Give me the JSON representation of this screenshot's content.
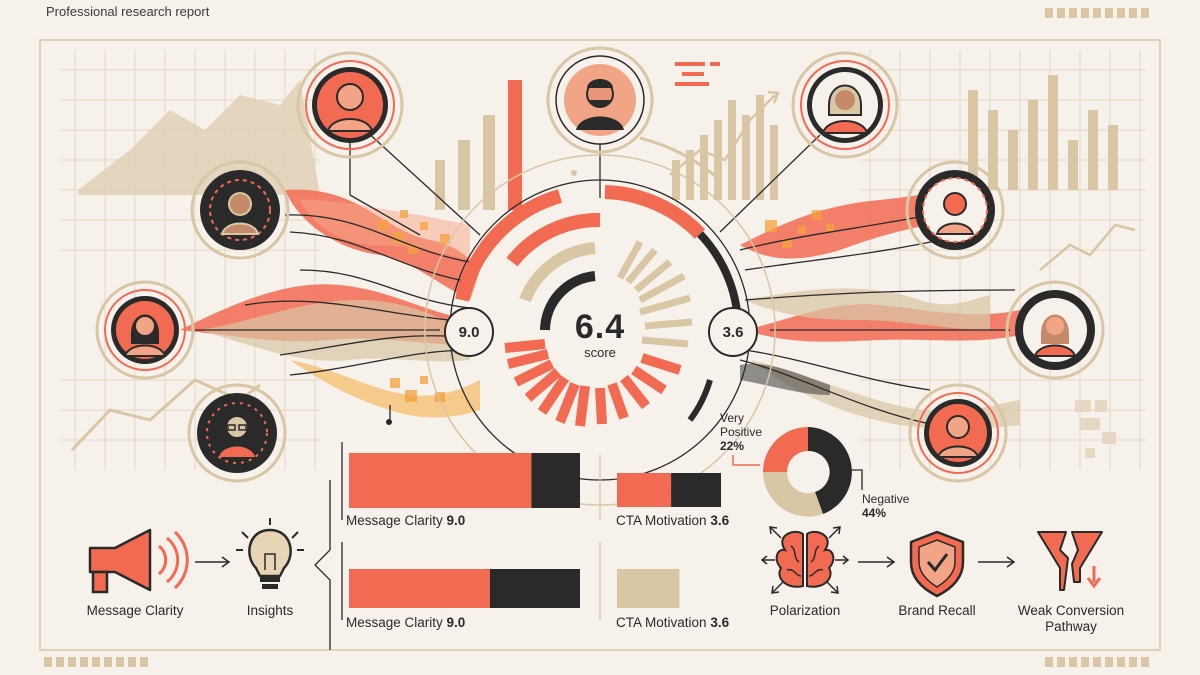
{
  "header": {
    "title": "Professional research report"
  },
  "score": {
    "value": "6.4",
    "label": "score"
  },
  "bubbles": {
    "left": "9.0",
    "right": "3.6"
  },
  "bars": [
    {
      "label": "Message Clarity",
      "value": "9.0",
      "fill_fraction": 0.79
    },
    {
      "label": "CTA Motivation",
      "value": "3.6",
      "fill_fraction": 0.52
    },
    {
      "label": "Message Clarity",
      "value": "9.0",
      "fill_fraction": 0.61
    },
    {
      "label": "CTA Motivation",
      "value": "3.6",
      "fill_fraction": 0.6
    }
  ],
  "pie": {
    "very_positive_label": "Very Positive",
    "very_positive_value": "22%",
    "negative_label": "Negative",
    "negative_value": "44%"
  },
  "flow_left": [
    {
      "label": "Message Clarity",
      "icon": "megaphone-icon"
    },
    {
      "label": "Insights",
      "icon": "lightbulb-icon"
    }
  ],
  "flow_right": [
    {
      "label": "Polarization",
      "icon": "brain-icon"
    },
    {
      "label": "Brand Recall",
      "icon": "shield-check-icon"
    },
    {
      "label": "Weak Conversion Pathway",
      "icon": "broken-funnel-icon"
    }
  ],
  "colors": {
    "coral": "#f26a52",
    "dark": "#2a2a2a",
    "tan": "#d9c6a5",
    "background": "#f6f1ea"
  }
}
